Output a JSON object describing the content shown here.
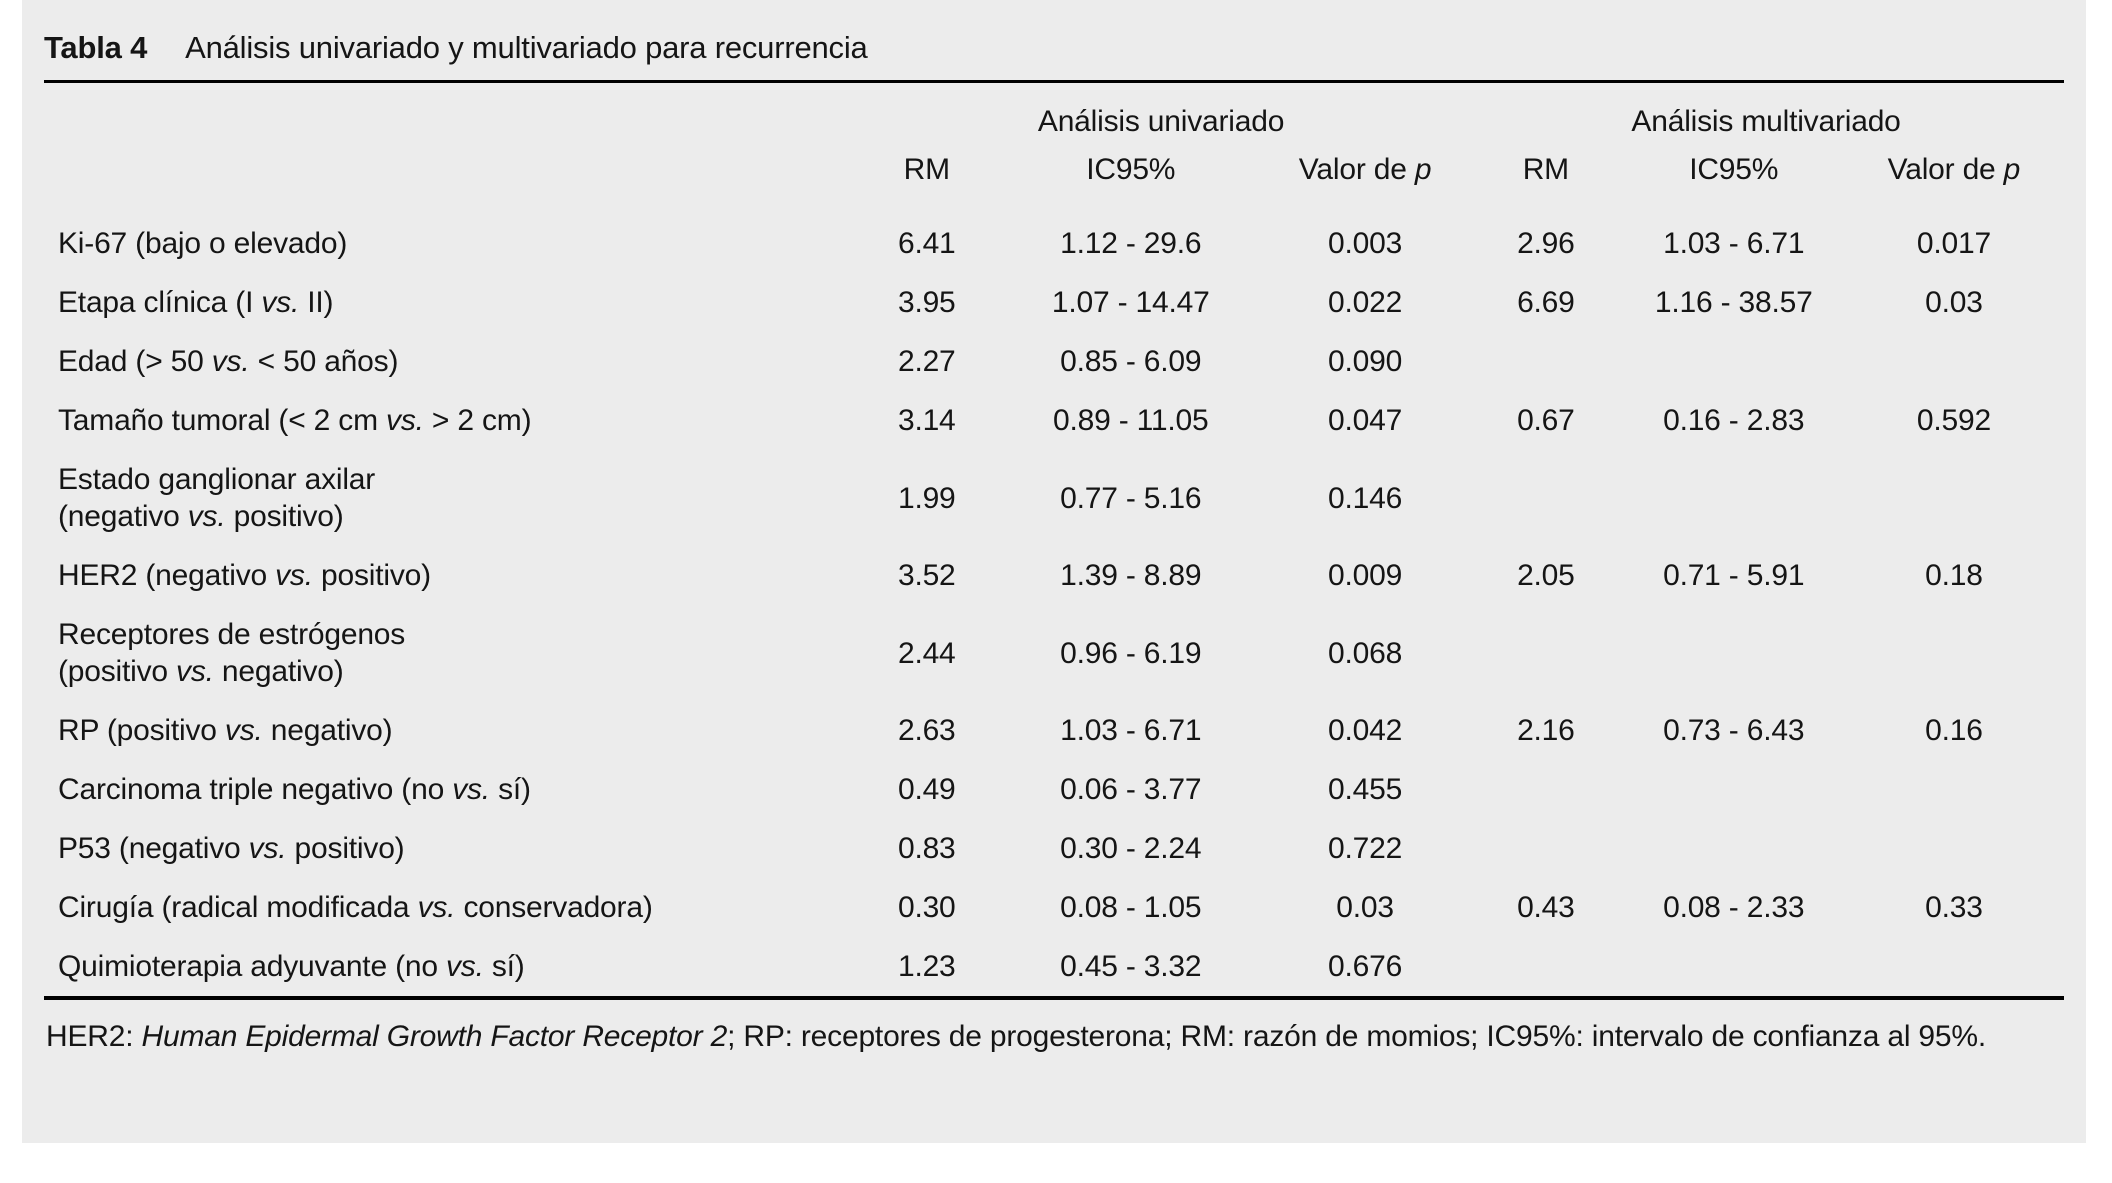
{
  "panel": {
    "background_color": "#ececec",
    "text_color": "#151515"
  },
  "table": {
    "title_label": "Tabla 4",
    "title_text": "Análisis univariado y multivariado para recurrencia",
    "group_headers": [
      "Análisis univariado",
      "Análisis multivariado"
    ],
    "column_headers": [
      "RM",
      "IC95%",
      "Valor de p",
      "RM",
      "IC95%",
      "Valor de p"
    ],
    "rows": [
      {
        "label": "Ki-67 (bajo o elevado)",
        "values": [
          "6.41",
          "1.12 - 29.6",
          "0.003",
          "2.96",
          "1.03 - 6.71",
          "0.017"
        ]
      },
      {
        "label": "Etapa clínica (I vs. II)",
        "values": [
          "3.95",
          "1.07 - 14.47",
          "0.022",
          "6.69",
          "1.16 - 38.57",
          "0.03"
        ]
      },
      {
        "label": "Edad (> 50 vs. < 50 años)",
        "values": [
          "2.27",
          "0.85 - 6.09",
          "0.090",
          "",
          "",
          ""
        ]
      },
      {
        "label": "Tamaño tumoral (< 2 cm vs. > 2 cm)",
        "values": [
          "3.14",
          "0.89 - 11.05",
          "0.047",
          "0.67",
          "0.16 - 2.83",
          "0.592"
        ]
      },
      {
        "label": "Estado ganglionar axilar\n(negativo vs. positivo)",
        "values": [
          "1.99",
          "0.77 - 5.16",
          "0.146",
          "",
          "",
          ""
        ]
      },
      {
        "label": "HER2 (negativo vs. positivo)",
        "values": [
          "3.52",
          "1.39 - 8.89",
          "0.009",
          "2.05",
          "0.71 - 5.91",
          "0.18"
        ]
      },
      {
        "label": "Receptores de estrógenos\n(positivo vs. negativo)",
        "values": [
          "2.44",
          "0.96 - 6.19",
          "0.068",
          "",
          "",
          ""
        ]
      },
      {
        "label": "RP (positivo vs. negativo)",
        "values": [
          "2.63",
          "1.03 - 6.71",
          "0.042",
          "2.16",
          "0.73 - 6.43",
          "0.16"
        ]
      },
      {
        "label": "Carcinoma triple negativo (no vs. sí)",
        "values": [
          "0.49",
          "0.06 - 3.77",
          "0.455",
          "",
          "",
          ""
        ]
      },
      {
        "label": "P53 (negativo vs. positivo)",
        "values": [
          "0.83",
          "0.30 - 2.24",
          "0.722",
          "",
          "",
          ""
        ]
      },
      {
        "label": "Cirugía (radical modificada vs. conservadora)",
        "values": [
          "0.30",
          "0.08 - 1.05",
          "0.03",
          "0.43",
          "0.08 - 2.33",
          "0.33"
        ]
      },
      {
        "label": "Quimioterapia adyuvante (no vs. sí)",
        "values": [
          "1.23",
          "0.45 - 3.32",
          "0.676",
          "",
          "",
          ""
        ]
      }
    ],
    "footnote": {
      "pre": "HER2: ",
      "italic": "Human Epidermal Growth Factor Receptor 2",
      "post": "; RP: receptores de progesterona; RM: razón de momios; IC95%: intervalo de confianza al 95%."
    }
  }
}
